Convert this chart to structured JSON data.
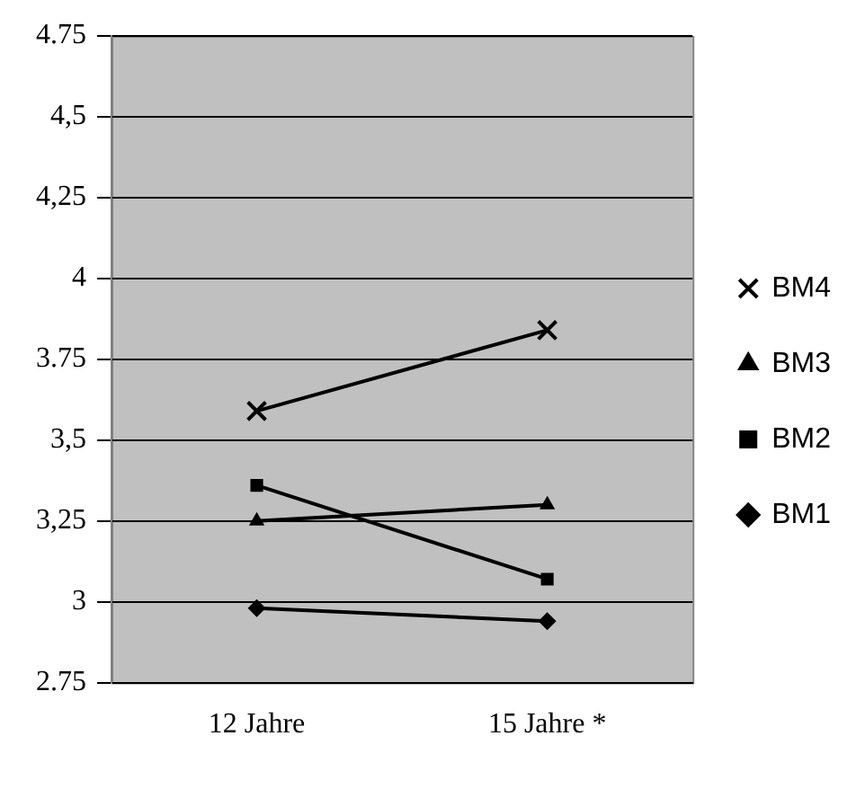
{
  "chart_data": {
    "type": "line",
    "categories": [
      "12 Jahre",
      "15 Jahre *"
    ],
    "series": [
      {
        "name": "BM1",
        "color": "#000000",
        "marker": "diamond",
        "values": [
          2.98,
          2.94
        ]
      },
      {
        "name": "BM2",
        "color": "#000000",
        "marker": "square",
        "values": [
          3.36,
          3.07
        ]
      },
      {
        "name": "BM3",
        "color": "#000000",
        "marker": "triangle",
        "values": [
          3.25,
          3.3
        ]
      },
      {
        "name": "BM4",
        "color": "#000000",
        "marker": "cross",
        "values": [
          3.59,
          3.84
        ]
      }
    ],
    "ylim": [
      2.75,
      4.75
    ],
    "yticks": [
      {
        "value": 2.75,
        "label": "2.75"
      },
      {
        "value": 3,
        "label": "3"
      },
      {
        "value": 3.25,
        "label": "3,25"
      },
      {
        "value": 3.5,
        "label": "3,5"
      },
      {
        "value": 3.75,
        "label": "3.75"
      },
      {
        "value": 4,
        "label": "4"
      },
      {
        "value": 4.25,
        "label": "4,25"
      },
      {
        "value": 4.5,
        "label": "4,5"
      },
      {
        "value": 4.75,
        "label": "4.75"
      }
    ],
    "grid": "y",
    "legend": "right"
  }
}
